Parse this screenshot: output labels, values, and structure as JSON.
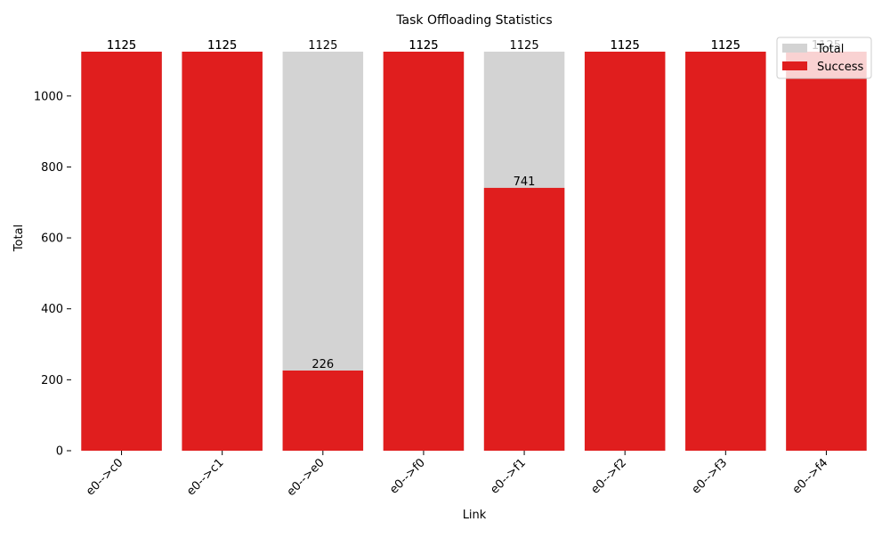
{
  "chart_data": {
    "type": "bar",
    "title": "Task Offloading Statistics",
    "xlabel": "Link",
    "ylabel": "Total",
    "categories": [
      "e0-->c0",
      "e0-->c1",
      "e0-->e0",
      "e0-->f0",
      "e0-->f1",
      "e0-->f2",
      "e0-->f3",
      "e0-->f4"
    ],
    "series": [
      {
        "name": "Total",
        "values": [
          1125,
          1125,
          1125,
          1125,
          1125,
          1125,
          1125,
          1125
        ],
        "color": "#d3d3d3"
      },
      {
        "name": "Success",
        "values": [
          1125,
          1125,
          226,
          1125,
          741,
          1125,
          1125,
          1125
        ],
        "color": "#e01e1e"
      }
    ],
    "ylim": [
      0,
      1125
    ],
    "yticks": [
      0,
      200,
      400,
      600,
      800,
      1000
    ],
    "grid": false,
    "legend_position": "top-right",
    "bars_overlaid": true
  }
}
